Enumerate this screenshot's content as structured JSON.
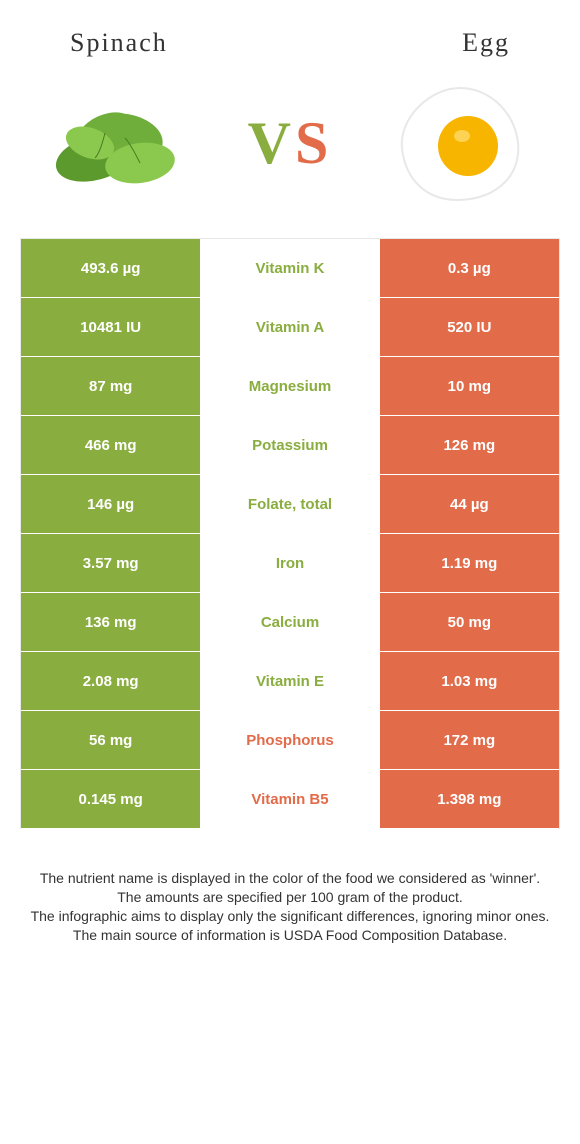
{
  "header": {
    "left": "Spinach",
    "right": "Egg"
  },
  "colors": {
    "spinach": "#8aad3f",
    "egg": "#e26b4a",
    "rowBorder": "#ffffff"
  },
  "rows": [
    {
      "left": "493.6 µg",
      "mid": "Vitamin K",
      "right": "0.3 µg",
      "winner": "spinach"
    },
    {
      "left": "10481 IU",
      "mid": "Vitamin A",
      "right": "520 IU",
      "winner": "spinach"
    },
    {
      "left": "87 mg",
      "mid": "Magnesium",
      "right": "10 mg",
      "winner": "spinach"
    },
    {
      "left": "466 mg",
      "mid": "Potassium",
      "right": "126 mg",
      "winner": "spinach"
    },
    {
      "left": "146 µg",
      "mid": "Folate, total",
      "right": "44 µg",
      "winner": "spinach"
    },
    {
      "left": "3.57 mg",
      "mid": "Iron",
      "right": "1.19 mg",
      "winner": "spinach"
    },
    {
      "left": "136 mg",
      "mid": "Calcium",
      "right": "50 mg",
      "winner": "spinach"
    },
    {
      "left": "2.08 mg",
      "mid": "Vitamin E",
      "right": "1.03 mg",
      "winner": "spinach"
    },
    {
      "left": "56 mg",
      "mid": "Phosphorus",
      "right": "172 mg",
      "winner": "egg"
    },
    {
      "left": "0.145 mg",
      "mid": "Vitamin B5",
      "right": "1.398 mg",
      "winner": "egg"
    }
  ],
  "footer": {
    "l1": "The nutrient name is displayed in the color of the food we considered as 'winner'.",
    "l2": "The amounts are specified per 100 gram of the product.",
    "l3": "The infographic aims to display only the significant differences, ignoring minor ones.",
    "l4": "The main source of information is USDA Food Composition Database."
  }
}
